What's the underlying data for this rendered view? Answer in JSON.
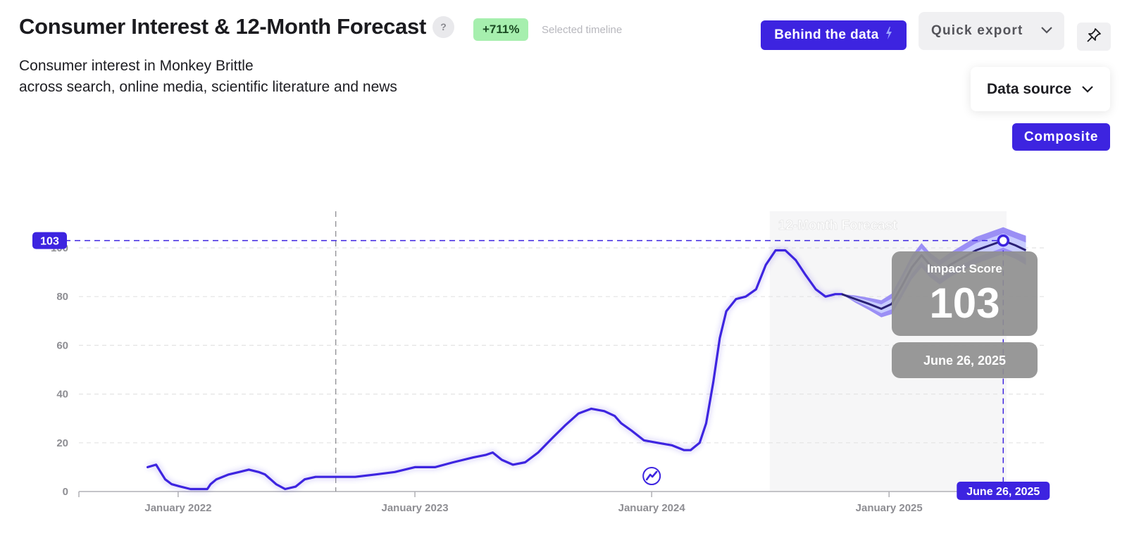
{
  "header": {
    "title": "Consumer Interest & 12-Month Forecast",
    "help_label": "?",
    "change_badge": "+711%",
    "change_note": "Selected timeline",
    "subtitle_line1": "Consumer interest in Monkey Brittle",
    "subtitle_line2": "across search, online media, scientific literature and news"
  },
  "toolbar": {
    "behind_label": "Behind the data",
    "quick_export_label": "Quick export",
    "data_source_label": "Data source",
    "composite_label": "Composite"
  },
  "icons": {
    "help": "question-icon",
    "lightning": "lightning-icon",
    "chevron": "chevron-down-icon",
    "pin": "pin-icon",
    "trend_event": "trend-event-icon"
  },
  "colors": {
    "accent": "#3d24e0",
    "forecast_band_outer": "#9b8ff5",
    "forecast_band_inner": "#c8ccff",
    "forecast_line": "#2a2175",
    "forecast_region": "#f6f6f7",
    "tooltip_bg": "#8f8f8f",
    "badge_bg": "#a6efae",
    "gridline": "#e4e4e4"
  },
  "chart_data": {
    "type": "line",
    "title": "12-Month Forecast",
    "xlabel": "",
    "ylabel": "",
    "ylim": [
      0,
      100
    ],
    "y_ticks": [
      0,
      20,
      40,
      60,
      80,
      100
    ],
    "x_range": [
      "2021-08-01",
      "2025-09-01"
    ],
    "x_tick_labels": [
      {
        "date": "2022-01-01",
        "label": "January 2022"
      },
      {
        "date": "2023-01-01",
        "label": "January 2023"
      },
      {
        "date": "2024-01-01",
        "label": "January 2024"
      },
      {
        "date": "2025-01-01",
        "label": "January 2025"
      }
    ],
    "grid": true,
    "timeline_marker_date": "2022-09-01",
    "forecast_start": "2024-07-01",
    "forecast_end": "2025-07-01",
    "series": [
      {
        "name": "Impact Score",
        "kind": "history",
        "points": [
          [
            "2021-11-15",
            10
          ],
          [
            "2021-11-28",
            11
          ],
          [
            "2021-12-05",
            8
          ],
          [
            "2021-12-12",
            5
          ],
          [
            "2021-12-22",
            3
          ],
          [
            "2022-01-05",
            2
          ],
          [
            "2022-01-20",
            1
          ],
          [
            "2022-02-01",
            1
          ],
          [
            "2022-02-15",
            1
          ],
          [
            "2022-02-20",
            3
          ],
          [
            "2022-03-01",
            5
          ],
          [
            "2022-03-20",
            7
          ],
          [
            "2022-04-05",
            8
          ],
          [
            "2022-04-20",
            9
          ],
          [
            "2022-05-05",
            8
          ],
          [
            "2022-05-15",
            7
          ],
          [
            "2022-06-01",
            3
          ],
          [
            "2022-06-15",
            1
          ],
          [
            "2022-07-01",
            2
          ],
          [
            "2022-07-15",
            5
          ],
          [
            "2022-08-01",
            6
          ],
          [
            "2022-09-01",
            6
          ],
          [
            "2022-10-01",
            6
          ],
          [
            "2022-11-01",
            7
          ],
          [
            "2022-12-01",
            8
          ],
          [
            "2023-01-01",
            10
          ],
          [
            "2023-02-01",
            10
          ],
          [
            "2023-03-01",
            12
          ],
          [
            "2023-04-01",
            14
          ],
          [
            "2023-04-20",
            15
          ],
          [
            "2023-05-01",
            16
          ],
          [
            "2023-05-15",
            13
          ],
          [
            "2023-06-01",
            11
          ],
          [
            "2023-06-20",
            12
          ],
          [
            "2023-07-10",
            16
          ],
          [
            "2023-08-01",
            22
          ],
          [
            "2023-08-20",
            27
          ],
          [
            "2023-09-10",
            32
          ],
          [
            "2023-09-30",
            34
          ],
          [
            "2023-10-20",
            33
          ],
          [
            "2023-11-05",
            31
          ],
          [
            "2023-11-15",
            28
          ],
          [
            "2023-12-01",
            25
          ],
          [
            "2023-12-20",
            21
          ],
          [
            "2024-01-10",
            20
          ],
          [
            "2024-02-01",
            19
          ],
          [
            "2024-02-20",
            17
          ],
          [
            "2024-03-01",
            17
          ],
          [
            "2024-03-15",
            20
          ],
          [
            "2024-03-25",
            28
          ],
          [
            "2024-04-05",
            45
          ],
          [
            "2024-04-15",
            63
          ],
          [
            "2024-04-25",
            74
          ],
          [
            "2024-05-10",
            79
          ],
          [
            "2024-05-25",
            80
          ],
          [
            "2024-06-10",
            83
          ],
          [
            "2024-06-25",
            93
          ],
          [
            "2024-07-10",
            99
          ],
          [
            "2024-07-25",
            99
          ],
          [
            "2024-08-10",
            95
          ],
          [
            "2024-08-25",
            89
          ],
          [
            "2024-09-10",
            83
          ],
          [
            "2024-09-25",
            80
          ],
          [
            "2024-10-10",
            81
          ],
          [
            "2024-10-20",
            81
          ]
        ]
      },
      {
        "name": "Forecast",
        "kind": "forecast",
        "points": [
          [
            "2024-10-20",
            81
          ],
          [
            "2024-11-10",
            79
          ],
          [
            "2024-12-01",
            77
          ],
          [
            "2024-12-20",
            75
          ],
          [
            "2025-01-05",
            77
          ],
          [
            "2025-01-20",
            84
          ],
          [
            "2025-02-05",
            92
          ],
          [
            "2025-02-20",
            97
          ],
          [
            "2025-03-05",
            93
          ],
          [
            "2025-03-20",
            90
          ],
          [
            "2025-04-05",
            93
          ],
          [
            "2025-04-25",
            96
          ],
          [
            "2025-05-15",
            99
          ],
          [
            "2025-06-05",
            101
          ],
          [
            "2025-06-26",
            103
          ],
          [
            "2025-07-15",
            101
          ],
          [
            "2025-07-31",
            99
          ]
        ]
      }
    ],
    "forecast_band_outer": [
      0,
      1.5,
      2.5,
      3.5,
      4.2,
      4.5,
      4.8,
      5,
      5,
      5,
      5,
      5.2,
      5.5,
      5.5,
      5.5,
      5.5,
      6
    ],
    "forecast_band_inner": [
      0,
      0.8,
      1.3,
      1.8,
      2.2,
      2.5,
      2.6,
      2.7,
      2.7,
      2.7,
      2.7,
      2.8,
      2.9,
      2.9,
      2.9,
      2.9,
      3.2
    ],
    "highlight": {
      "date": "2025-06-26",
      "value": 103,
      "value_label": "103",
      "date_label": "June 26, 2025",
      "tooltip_title": "Impact Score"
    },
    "event_marker_date": "2024-01-01"
  }
}
